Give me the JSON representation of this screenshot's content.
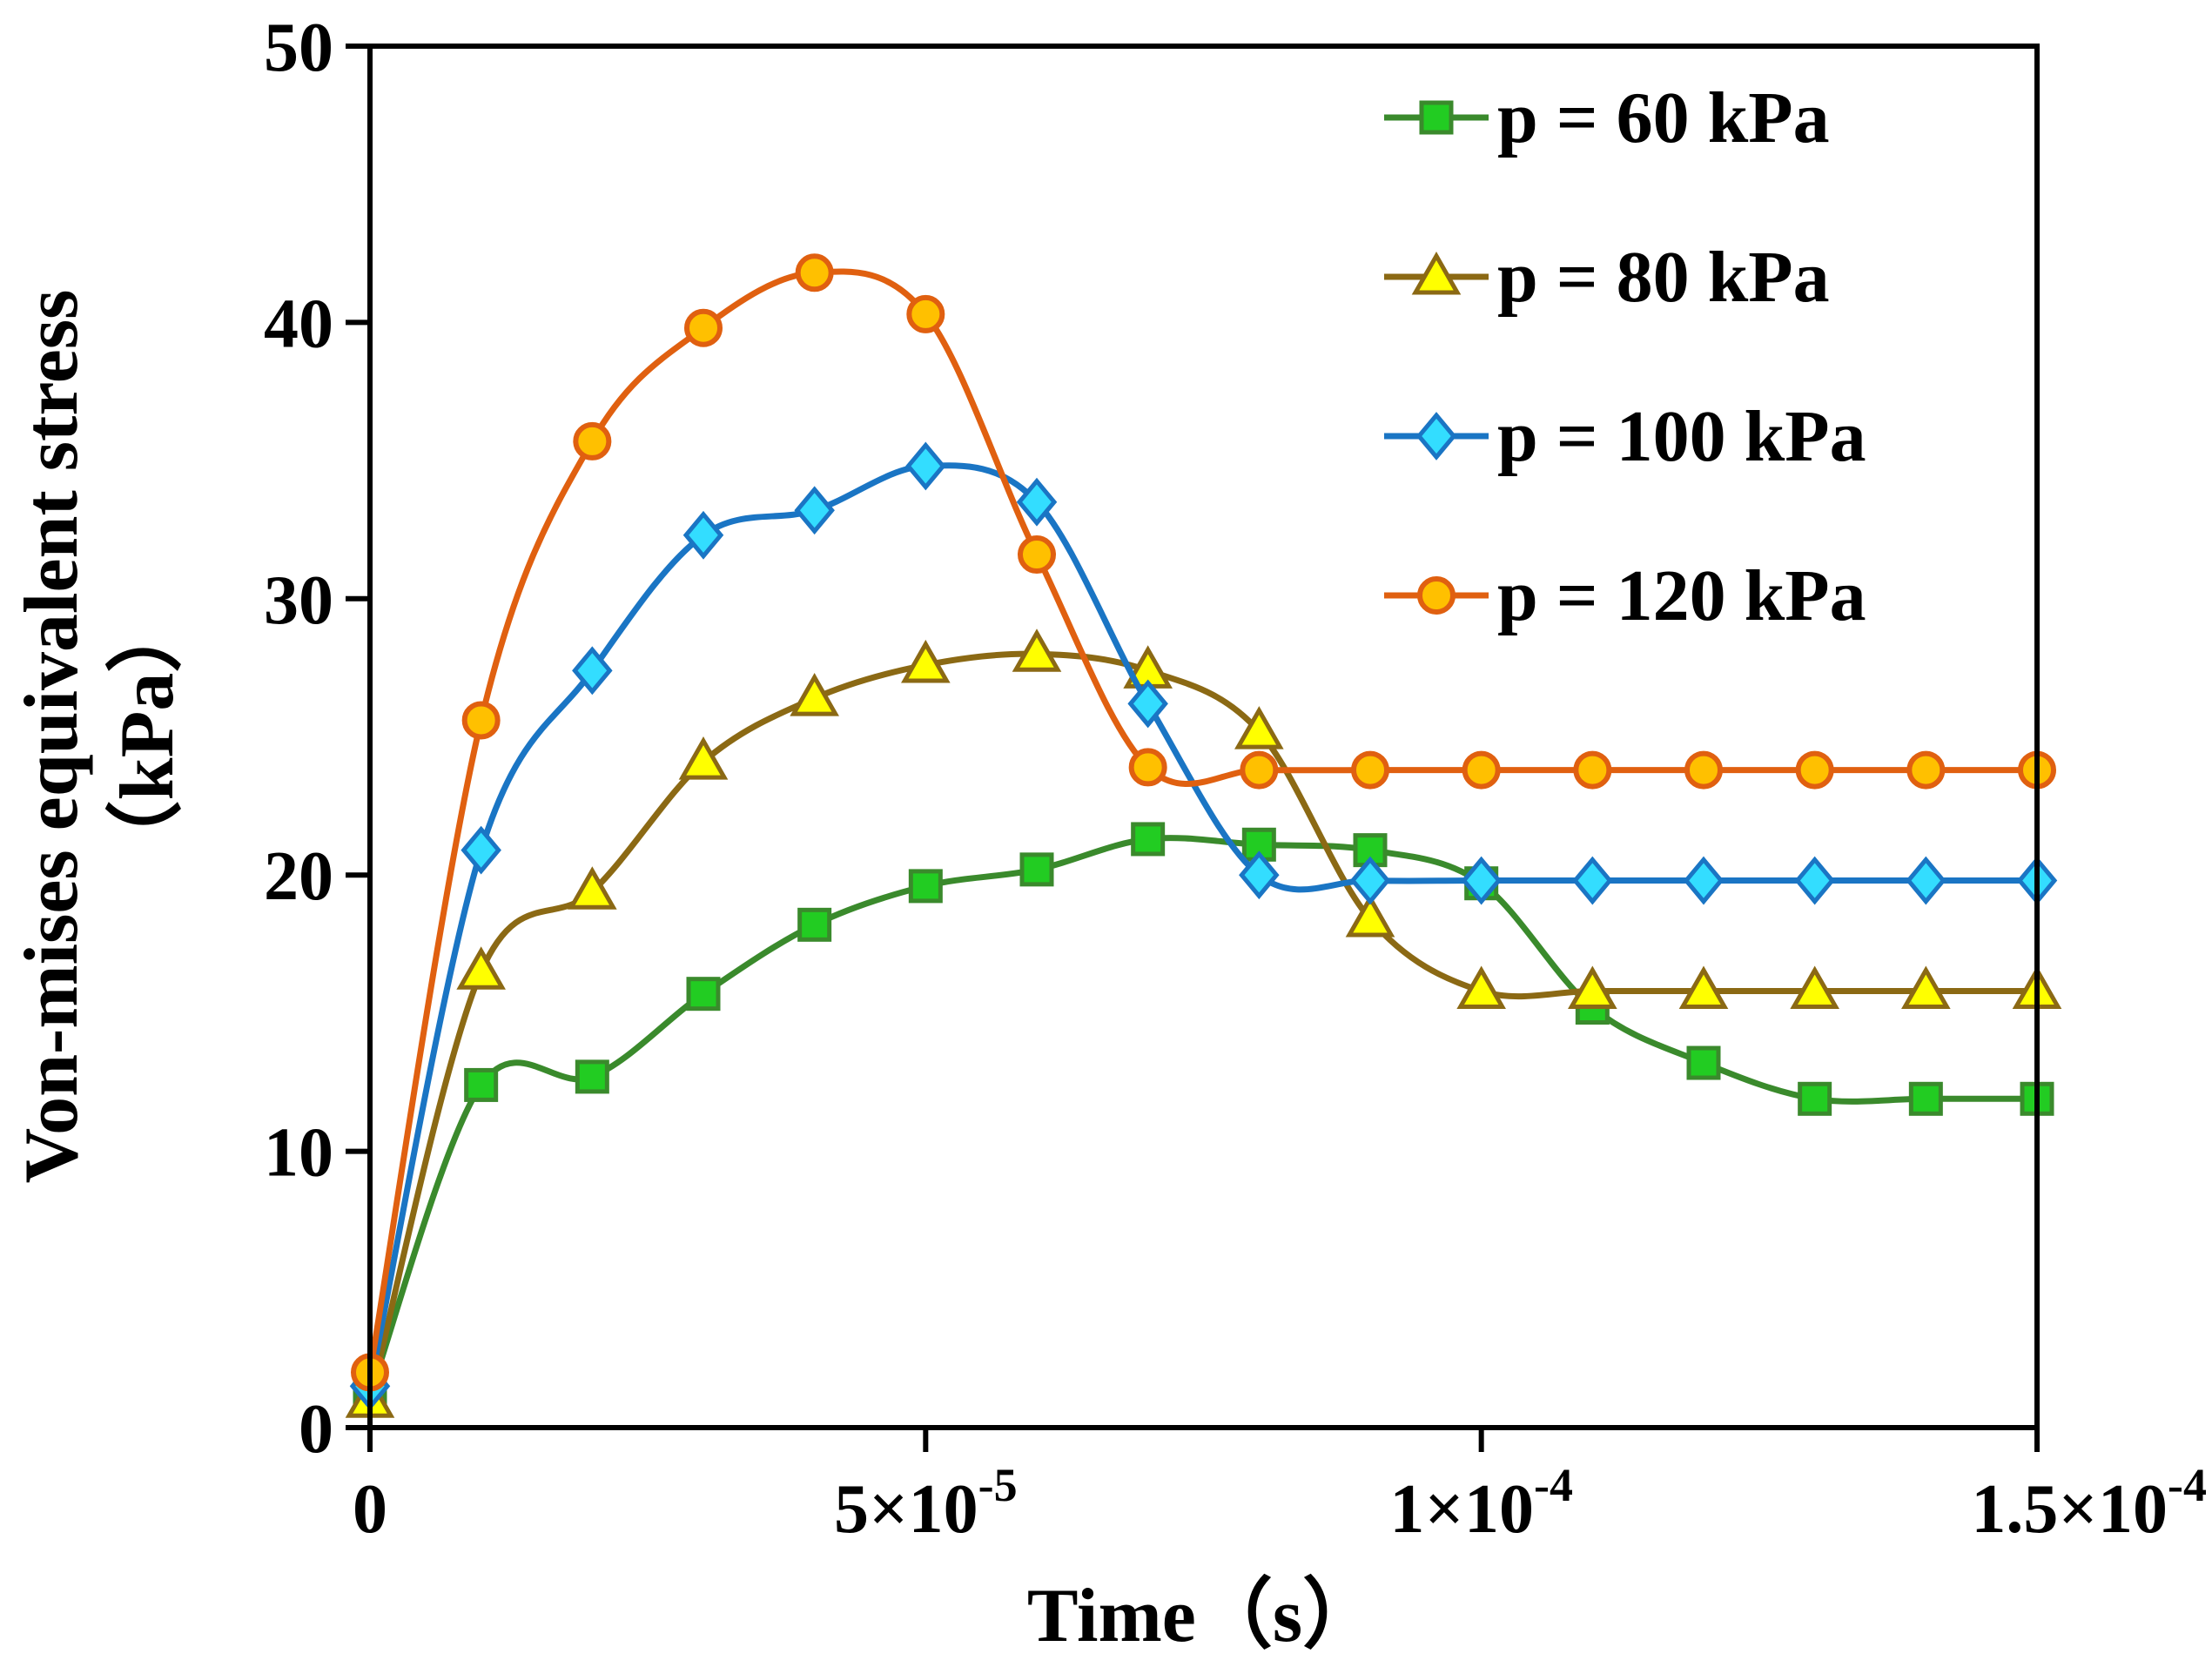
{
  "chart_data": {
    "type": "line",
    "title": "",
    "xlabel": "Time（s）",
    "ylabel_line1": "Von-mises equivalent stress",
    "ylabel_line2": "（kPa）",
    "xlim": [
      0,
      0.00015
    ],
    "ylim": [
      0,
      50
    ],
    "grid": false,
    "legend_position": "top-right",
    "x_ticks": [
      {
        "value": 0,
        "label": "0",
        "exp": ""
      },
      {
        "value": 5e-05,
        "label": "5×10",
        "exp": "-5"
      },
      {
        "value": 0.0001,
        "label": "1×10",
        "exp": "-4"
      },
      {
        "value": 0.00015,
        "label": "1.5×10",
        "exp": "-4"
      }
    ],
    "y_ticks": [
      {
        "value": 0,
        "label": "0"
      },
      {
        "value": 10,
        "label": "10"
      },
      {
        "value": 20,
        "label": "20"
      },
      {
        "value": 30,
        "label": "30"
      },
      {
        "value": 40,
        "label": "40"
      },
      {
        "value": 50,
        "label": "50"
      }
    ],
    "x": [
      0,
      1e-05,
      2e-05,
      3e-05,
      4e-05,
      5e-05,
      6e-05,
      7e-05,
      8e-05,
      9e-05,
      0.0001,
      0.00011,
      0.00012,
      0.00013,
      0.00014,
      0.00015
    ],
    "series": [
      {
        "name": "p = 60 kPa",
        "line_color": "#3a8a2c",
        "marker": "square",
        "marker_fill": "#22cc22",
        "marker_stroke": "#3a8a2c",
        "values": [
          1.2,
          12.4,
          12.7,
          15.7,
          18.2,
          19.6,
          20.2,
          21.3,
          21.1,
          20.9,
          19.7,
          15.2,
          13.2,
          11.9,
          11.9,
          11.9
        ]
      },
      {
        "name": "p = 80 kPa",
        "line_color": "#8b6914",
        "marker": "triangle",
        "marker_fill": "#ffff00",
        "marker_stroke": "#8b6914",
        "values": [
          1.0,
          16.5,
          19.4,
          24.1,
          26.4,
          27.6,
          28.0,
          27.4,
          25.2,
          18.4,
          15.8,
          15.8,
          15.8,
          15.8,
          15.8,
          15.8
        ]
      },
      {
        "name": "p = 100 kPa",
        "line_color": "#1a75c4",
        "marker": "diamond",
        "marker_fill": "#33ddff",
        "marker_stroke": "#1a75c4",
        "values": [
          1.5,
          20.9,
          27.4,
          32.3,
          33.2,
          34.8,
          33.5,
          26.2,
          20.0,
          19.8,
          19.8,
          19.8,
          19.8,
          19.8,
          19.8,
          19.8
        ]
      },
      {
        "name": "p = 120 kPa",
        "line_color": "#e06010",
        "marker": "circle",
        "marker_fill": "#ffc000",
        "marker_stroke": "#e06010",
        "values": [
          2.0,
          25.6,
          35.7,
          39.8,
          41.8,
          40.3,
          31.6,
          23.9,
          23.8,
          23.8,
          23.8,
          23.8,
          23.8,
          23.8,
          23.8,
          23.8
        ]
      }
    ]
  }
}
